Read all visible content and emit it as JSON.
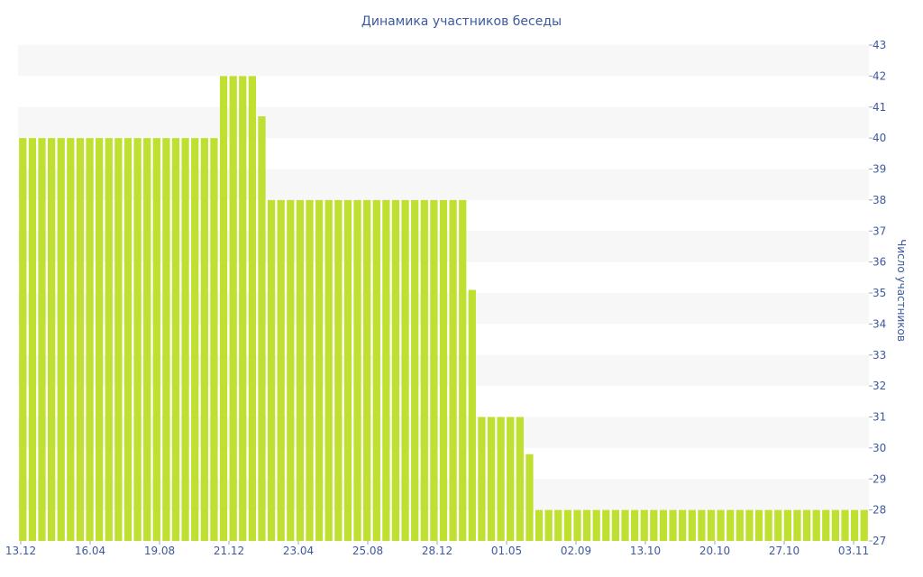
{
  "chart_data": {
    "type": "bar",
    "title": "Динамика участников беседы",
    "ylabel": "Число участников",
    "xlabel": "",
    "ylim": [
      27,
      43
    ],
    "y_ticks": [
      27,
      28,
      29,
      30,
      31,
      32,
      33,
      34,
      35,
      36,
      37,
      38,
      39,
      40,
      41,
      42,
      43
    ],
    "y_axis_side": "right",
    "x_tick_labels": [
      "13.12",
      "16.04",
      "19.08",
      "21.12",
      "23.04",
      "25.08",
      "28.12",
      "01.05",
      "02.09",
      "13.10",
      "20.10",
      "27.10",
      "03.11"
    ],
    "grid": "alternating horizontal bands",
    "legend": "none",
    "colors": {
      "bar": "#bfe030",
      "band": "#f7f7f7",
      "text": "#3d5a9e"
    },
    "series": [
      {
        "values": [
          40,
          40,
          40,
          40,
          40,
          40,
          40,
          40,
          40,
          40,
          40,
          40,
          40,
          40,
          40,
          40,
          40,
          40,
          40,
          40,
          40,
          42,
          42,
          42,
          42,
          40.7,
          38,
          38,
          38,
          38,
          38,
          38,
          38,
          38,
          38,
          38,
          38,
          38,
          38,
          38,
          38,
          38,
          38,
          38,
          38,
          38,
          38,
          35.1,
          31,
          31,
          31,
          31,
          31,
          29.8,
          28,
          28,
          28,
          28,
          28,
          28,
          28,
          28,
          28,
          28,
          28,
          28,
          28,
          28,
          28,
          28,
          28,
          28,
          28,
          28,
          28,
          28,
          28,
          28,
          28,
          28,
          28,
          28,
          28,
          28,
          28,
          28,
          28,
          28,
          28
        ]
      }
    ]
  }
}
